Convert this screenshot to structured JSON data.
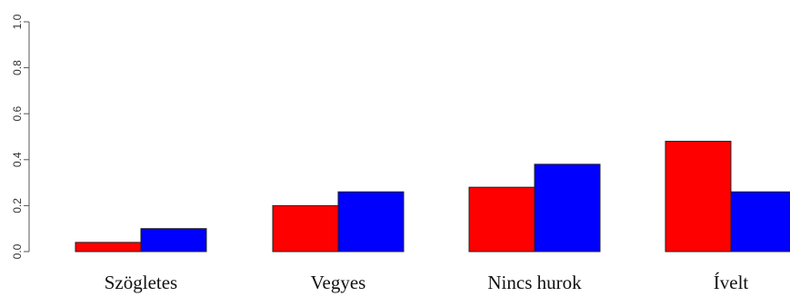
{
  "chart_data": {
    "type": "bar",
    "title": "",
    "xlabel": "",
    "ylabel": "",
    "ylim": [
      0,
      1
    ],
    "yticks": [
      "0.0",
      "0.2",
      "0.4",
      "0.6",
      "0.8",
      "1.0"
    ],
    "categories": [
      "Szögletes",
      "Vegyes",
      "Nincs hurok",
      "Ívelt"
    ],
    "series": [
      {
        "color": "#ff0000",
        "values": [
          0.04,
          0.2,
          0.28,
          0.48
        ]
      },
      {
        "color": "#0000ff",
        "values": [
          0.1,
          0.26,
          0.38,
          0.26
        ]
      }
    ],
    "grid": false,
    "legend": "none"
  }
}
